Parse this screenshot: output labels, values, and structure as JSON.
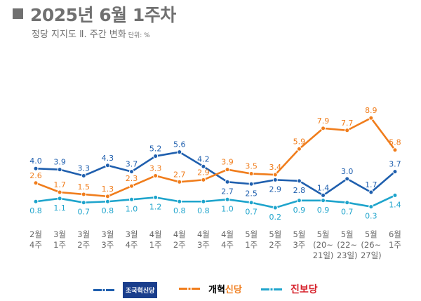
{
  "header": {
    "title": "2025년 6월 1주차",
    "subtitle": "정당 지지도 Ⅱ. 주간 변화",
    "unit": "단위: %"
  },
  "chart_data": {
    "type": "line",
    "categories": [
      [
        "2월",
        "4주"
      ],
      [
        "3월",
        "1주"
      ],
      [
        "3월",
        "2주"
      ],
      [
        "3월",
        "3주"
      ],
      [
        "3월",
        "4주"
      ],
      [
        "4월",
        "1주"
      ],
      [
        "4월",
        "2주"
      ],
      [
        "4월",
        "3주"
      ],
      [
        "4월",
        "4주"
      ],
      [
        "5월",
        "1주"
      ],
      [
        "5월",
        "2주"
      ],
      [
        "5월",
        "3주"
      ],
      [
        "5월",
        "(20~",
        "21일)"
      ],
      [
        "5월",
        "(22~",
        "23일)"
      ],
      [
        "5월",
        "(26~",
        "27일)"
      ],
      [
        "6월",
        "1주"
      ]
    ],
    "series": [
      {
        "name": "조국혁신당",
        "color": "#1f5fae",
        "values": [
          4.0,
          3.9,
          3.3,
          4.3,
          3.7,
          5.2,
          5.6,
          4.2,
          2.7,
          2.5,
          2.9,
          2.8,
          1.4,
          3.0,
          1.7,
          3.7
        ]
      },
      {
        "name": "개혁신당",
        "color": "#f07d1c",
        "values": [
          2.6,
          1.7,
          1.5,
          1.3,
          2.3,
          3.3,
          2.7,
          2.9,
          3.9,
          3.5,
          3.4,
          5.9,
          7.9,
          7.7,
          8.9,
          5.8
        ]
      },
      {
        "name": "진보당",
        "color": "#1ea4cc",
        "values": [
          0.8,
          1.1,
          0.7,
          0.8,
          1.0,
          1.2,
          0.8,
          0.8,
          1.0,
          0.7,
          0.2,
          0.9,
          0.9,
          0.7,
          0.3,
          1.4
        ]
      }
    ],
    "legend": "bottom",
    "grid": false,
    "ylim": [
      0,
      9.5
    ]
  },
  "legend": {
    "items": [
      {
        "label": "조국혁신당",
        "color": "#1f5fae"
      },
      {
        "label_a": "개혁",
        "label_b": "신당",
        "label": "개혁신당",
        "color": "#f07d1c"
      },
      {
        "label": "진보당",
        "color": "#1ea4cc",
        "text_color": "#d6202a"
      }
    ]
  }
}
